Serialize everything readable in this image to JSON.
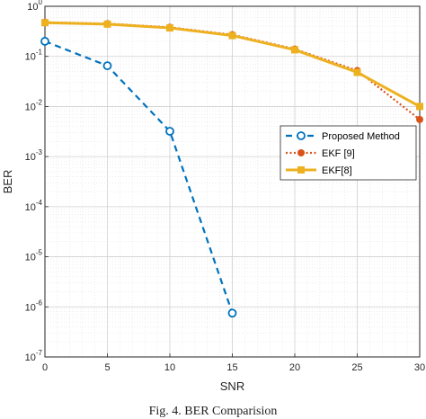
{
  "chart_data": {
    "type": "line",
    "xlabel": "SNR",
    "ylabel": "BER",
    "xlim": [
      0,
      30
    ],
    "ylim": [
      1e-07,
      1
    ],
    "yscale": "log",
    "x_ticks": [
      "0",
      "5",
      "10",
      "15",
      "20",
      "25",
      "30"
    ],
    "y_ticks": [
      {
        "base": "10",
        "exp": "0"
      },
      {
        "base": "10",
        "exp": "-1"
      },
      {
        "base": "10",
        "exp": "-2"
      },
      {
        "base": "10",
        "exp": "-3"
      },
      {
        "base": "10",
        "exp": "-4"
      },
      {
        "base": "10",
        "exp": "-5"
      },
      {
        "base": "10",
        "exp": "-6"
      },
      {
        "base": "10",
        "exp": "-7"
      }
    ],
    "grid": true,
    "legend_position": "right",
    "series": [
      {
        "name": "Proposed Method",
        "color": "#0072BD",
        "line": "dashed",
        "marker": "circle",
        "x": [
          0,
          5,
          10,
          15
        ],
        "y": [
          0.2,
          0.065,
          0.0032,
          7.5e-07
        ]
      },
      {
        "name": "EKF [9]",
        "color": "#D95319",
        "line": "dotted",
        "marker": "dot",
        "x": [
          0,
          5,
          10,
          15,
          20,
          25,
          30
        ],
        "y": [
          0.48,
          0.45,
          0.38,
          0.27,
          0.14,
          0.052,
          0.0055
        ]
      },
      {
        "name": "EKF[8]",
        "color": "#EDB120",
        "line": "solid",
        "marker": "square",
        "x": [
          0,
          5,
          10,
          15,
          20,
          25,
          30
        ],
        "y": [
          0.47,
          0.44,
          0.37,
          0.26,
          0.135,
          0.048,
          0.01
        ]
      }
    ]
  },
  "caption": "Fig. 4. BER Comparision"
}
